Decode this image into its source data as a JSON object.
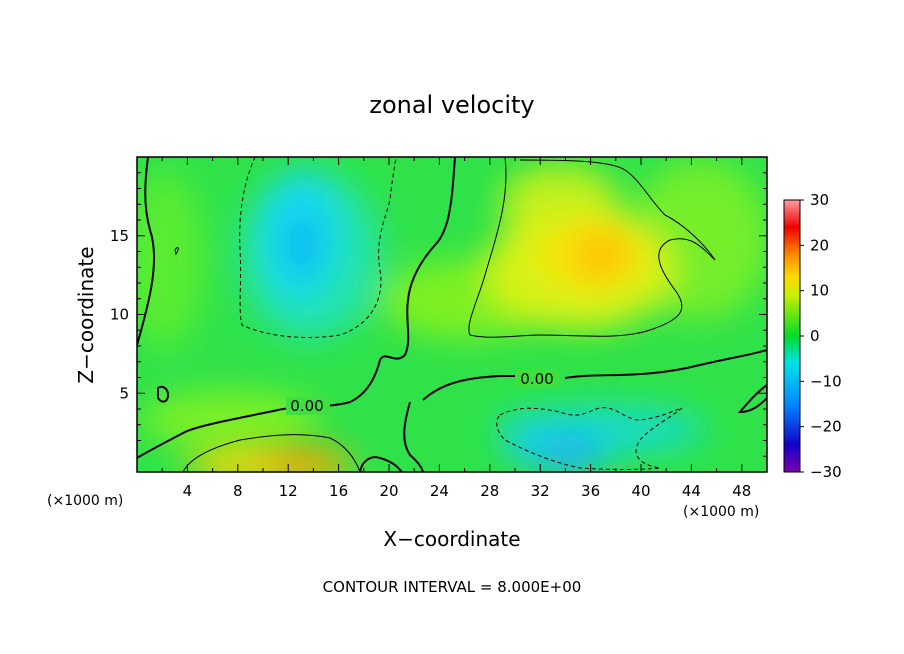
{
  "chart_data": {
    "type": "heatmap",
    "title": "zonal velocity",
    "xlabel": "X−coordinate",
    "ylabel": "Z−coordinate",
    "x_unit_left": "(×1000 m)",
    "x_unit_right": "(×1000 m)",
    "footer": "CONTOUR INTERVAL = 8.000E+00",
    "xlim": [
      0,
      50
    ],
    "ylim": [
      0,
      20
    ],
    "x_ticks": [
      4,
      8,
      12,
      16,
      20,
      24,
      28,
      32,
      36,
      40,
      44,
      48
    ],
    "y_ticks": [
      5,
      10,
      15
    ],
    "colorbar": {
      "min": -30,
      "max": 30,
      "ticks": [
        30,
        20,
        10,
        0,
        -10,
        -20,
        -30
      ],
      "tick_labels": [
        "30",
        "20",
        "10",
        "0",
        "−10",
        "−20",
        "−30"
      ]
    },
    "contour_interval": 8.0,
    "contour_labels": [
      {
        "text": "0.00",
        "x": 13.5,
        "z": 4.2
      },
      {
        "text": "0.00",
        "x": 31.5,
        "z": 5.8
      }
    ],
    "features": [
      {
        "name": "negative jet upper-left",
        "x": 14,
        "z": 14,
        "value": -12
      },
      {
        "name": "positive core upper-right",
        "x": 36,
        "z": 14.5,
        "value": 14
      },
      {
        "name": "positive core near ground",
        "x": 14,
        "z": 0.8,
        "value": 16
      },
      {
        "name": "negative core near ground",
        "x": 34,
        "z": 1.5,
        "value": -13
      }
    ]
  }
}
